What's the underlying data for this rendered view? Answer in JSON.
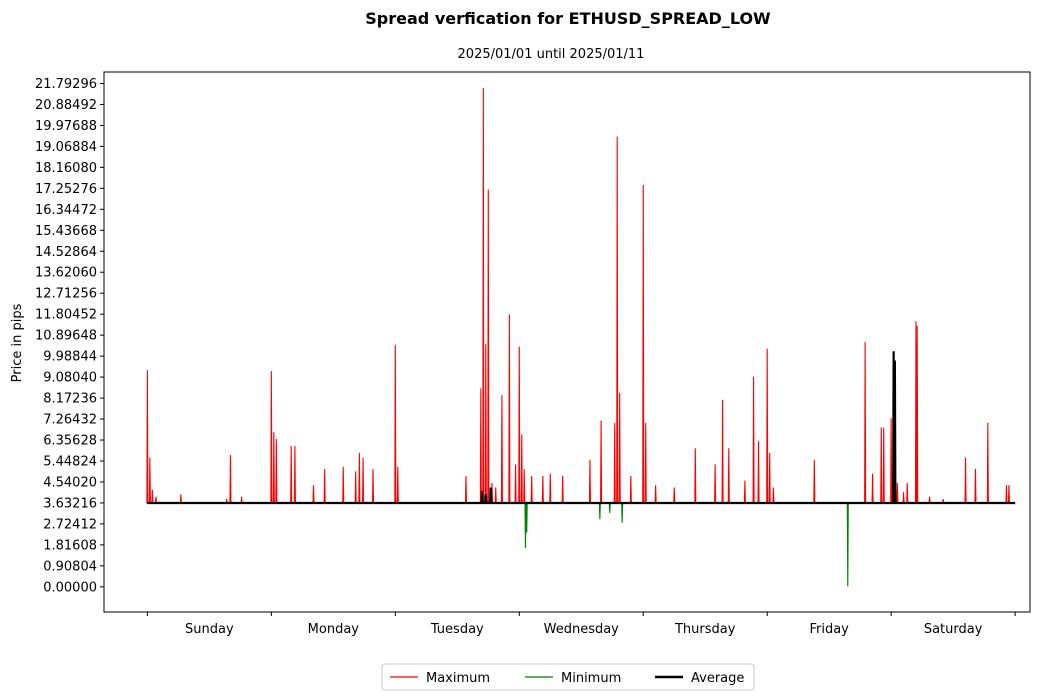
{
  "chart_data": {
    "type": "line",
    "title": "Spread verfication for ETHUSD_SPREAD_LOW",
    "subtitle": "2025/01/01 until 2025/01/11",
    "ylabel": "Price in pips",
    "xlabel": "",
    "ylim": [
      -1.09,
      22.29
    ],
    "xlim": [
      -0.35,
      7.12
    ],
    "y_ticks": [
      "21.79296",
      "20.88492",
      "19.97688",
      "19.06884",
      "18.16080",
      "17.25276",
      "16.34472",
      "15.43668",
      "14.52864",
      "13.62060",
      "12.71256",
      "11.80452",
      "10.89648",
      "9.98844",
      "9.08040",
      "8.17236",
      "7.26432",
      "6.35628",
      "5.44824",
      "4.54020",
      "3.63216",
      "2.72412",
      "1.81608",
      "0.90804",
      "0.00000"
    ],
    "x_tick_positions": [
      0,
      1,
      2,
      3,
      4,
      5,
      6,
      7
    ],
    "categories": [
      "Sunday",
      "Monday",
      "Tuesday",
      "Wednesday",
      "Thursday",
      "Friday",
      "Saturday"
    ],
    "baseline": 3.63,
    "series": [
      {
        "name": "Maximum",
        "color": "#ff0000",
        "spikes": [
          [
            0.0,
            9.38
          ],
          [
            0.02,
            5.6
          ],
          [
            0.04,
            4.2
          ],
          [
            0.07,
            3.9
          ],
          [
            0.27,
            4.0
          ],
          [
            0.64,
            3.8
          ],
          [
            0.67,
            5.7
          ],
          [
            0.76,
            3.9
          ],
          [
            1.0,
            9.34
          ],
          [
            1.02,
            6.7
          ],
          [
            1.04,
            6.4
          ],
          [
            1.16,
            6.1
          ],
          [
            1.19,
            6.1
          ],
          [
            1.34,
            4.4
          ],
          [
            1.43,
            5.1
          ],
          [
            1.58,
            5.2
          ],
          [
            1.68,
            5.0
          ],
          [
            1.71,
            5.8
          ],
          [
            1.74,
            5.6
          ],
          [
            1.82,
            5.1
          ],
          [
            2.0,
            10.48
          ],
          [
            2.02,
            5.2
          ],
          [
            2.57,
            4.8
          ],
          [
            2.69,
            8.6
          ],
          [
            2.71,
            21.6
          ],
          [
            2.73,
            10.5
          ],
          [
            2.75,
            17.2
          ],
          [
            2.78,
            4.5
          ],
          [
            2.81,
            4.3
          ],
          [
            2.86,
            8.3
          ],
          [
            2.92,
            11.8
          ],
          [
            2.97,
            5.3
          ],
          [
            3.0,
            10.4
          ],
          [
            3.02,
            6.6
          ],
          [
            3.04,
            5.1
          ],
          [
            3.1,
            4.8
          ],
          [
            3.19,
            4.8
          ],
          [
            3.25,
            4.9
          ],
          [
            3.35,
            4.8
          ],
          [
            3.57,
            5.5
          ],
          [
            3.66,
            7.2
          ],
          [
            3.77,
            7.1
          ],
          [
            3.79,
            19.5
          ],
          [
            3.81,
            8.4
          ],
          [
            3.9,
            4.8
          ],
          [
            4.0,
            17.4
          ],
          [
            4.02,
            7.1
          ],
          [
            4.1,
            4.4
          ],
          [
            4.25,
            4.3
          ],
          [
            4.42,
            6.0
          ],
          [
            4.58,
            5.3
          ],
          [
            4.64,
            8.1
          ],
          [
            4.69,
            6.0
          ],
          [
            4.82,
            4.6
          ],
          [
            4.89,
            9.1
          ],
          [
            4.93,
            6.3
          ],
          [
            5.0,
            10.3
          ],
          [
            5.02,
            5.8
          ],
          [
            5.05,
            4.3
          ],
          [
            5.38,
            5.5
          ],
          [
            5.79,
            10.6
          ],
          [
            5.85,
            4.9
          ],
          [
            5.92,
            6.9
          ],
          [
            5.94,
            6.9
          ],
          [
            6.0,
            7.3
          ],
          [
            6.03,
            4.3
          ],
          [
            6.05,
            4.5
          ],
          [
            6.1,
            4.1
          ],
          [
            6.13,
            4.5
          ],
          [
            6.2,
            11.5
          ],
          [
            6.21,
            11.3
          ],
          [
            6.31,
            3.9
          ],
          [
            6.42,
            3.8
          ],
          [
            6.6,
            5.6
          ],
          [
            6.68,
            5.1
          ],
          [
            6.78,
            7.1
          ],
          [
            6.93,
            4.4
          ],
          [
            6.95,
            4.4
          ]
        ]
      },
      {
        "name": "Minimum",
        "color": "#008000",
        "spikes": [
          [
            3.05,
            1.68
          ],
          [
            3.06,
            2.35
          ],
          [
            3.65,
            2.93
          ],
          [
            3.73,
            3.2
          ],
          [
            3.83,
            2.77
          ],
          [
            5.65,
            0.02
          ]
        ]
      },
      {
        "name": "Average",
        "color": "#000000",
        "spikes": [
          [
            2.7,
            4.15
          ],
          [
            2.73,
            4.0
          ],
          [
            2.77,
            4.3
          ],
          [
            6.02,
            10.2
          ],
          [
            6.03,
            9.8
          ]
        ]
      }
    ],
    "legend": [
      "Maximum",
      "Minimum",
      "Average"
    ],
    "legend_position": "bottom-center"
  }
}
